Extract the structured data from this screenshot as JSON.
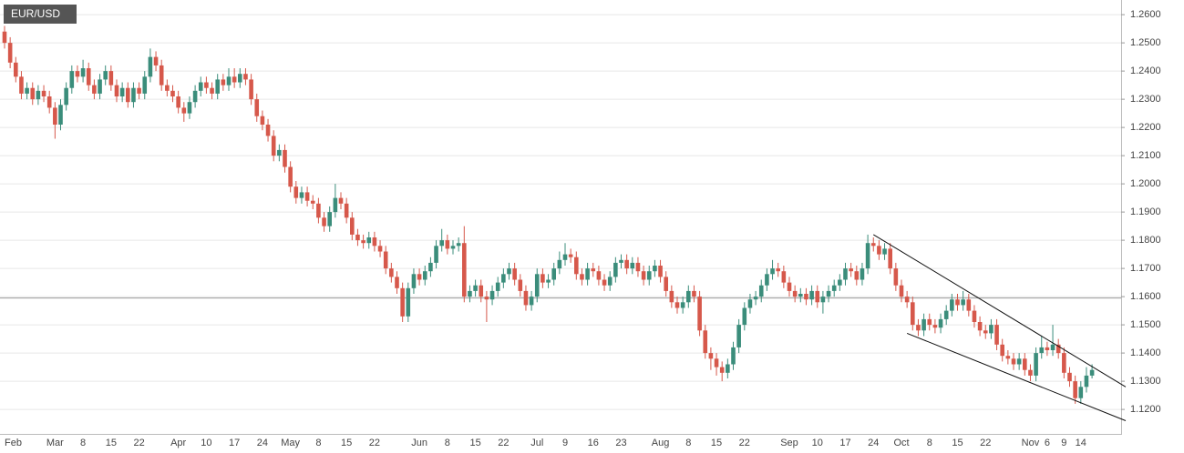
{
  "chart_data": {
    "type": "candlestick",
    "title": "EUR/USD",
    "up_color": "#3b8d7b",
    "down_color": "#d6584b",
    "grid": true,
    "ylim": [
      1.111,
      1.2652
    ],
    "yticks": [
      {
        "value": 1.12,
        "label": "1.1200"
      },
      {
        "value": 1.13,
        "label": "1.1300"
      },
      {
        "value": 1.14,
        "label": "1.1400"
      },
      {
        "value": 1.15,
        "label": "1.1500"
      },
      {
        "value": 1.16,
        "label": "1.1600"
      },
      {
        "value": 1.17,
        "label": "1.1700"
      },
      {
        "value": 1.18,
        "label": "1.1800"
      },
      {
        "value": 1.19,
        "label": "1.1900"
      },
      {
        "value": 1.2,
        "label": "1.2000"
      },
      {
        "value": 1.21,
        "label": "1.2100"
      },
      {
        "value": 1.22,
        "label": "1.2200"
      },
      {
        "value": 1.23,
        "label": "1.2300"
      },
      {
        "value": 1.24,
        "label": "1.2400"
      },
      {
        "value": 1.25,
        "label": "1.2500"
      },
      {
        "value": 1.26,
        "label": "1.2600"
      }
    ],
    "reference_line": 1.1595,
    "trendlines": [
      {
        "x": [
          155,
          200
        ],
        "y": [
          1.182,
          1.128
        ]
      },
      {
        "x": [
          161,
          200
        ],
        "y": [
          1.147,
          1.116
        ]
      }
    ],
    "categories": [
      "Feb",
      null,
      null,
      null,
      null,
      null,
      null,
      null,
      null,
      "Mar",
      null,
      null,
      null,
      null,
      "8",
      null,
      null,
      null,
      null,
      "15",
      null,
      null,
      null,
      null,
      "22",
      null,
      null,
      null,
      null,
      null,
      null,
      "Apr",
      null,
      null,
      null,
      null,
      "10",
      null,
      null,
      null,
      null,
      "17",
      null,
      null,
      null,
      null,
      "24",
      null,
      null,
      null,
      null,
      "May",
      null,
      null,
      null,
      null,
      "8",
      null,
      null,
      null,
      null,
      "15",
      null,
      null,
      null,
      null,
      "22",
      null,
      null,
      null,
      null,
      null,
      null,
      null,
      "Jun",
      null,
      null,
      null,
      null,
      "8",
      null,
      null,
      null,
      null,
      "15",
      null,
      null,
      null,
      null,
      "22",
      null,
      null,
      null,
      null,
      null,
      "Jul",
      null,
      null,
      null,
      null,
      "9",
      null,
      null,
      null,
      null,
      "16",
      null,
      null,
      null,
      null,
      "23",
      null,
      null,
      null,
      null,
      null,
      null,
      "Aug",
      null,
      null,
      null,
      null,
      "8",
      null,
      null,
      null,
      null,
      "15",
      null,
      null,
      null,
      null,
      "22",
      null,
      null,
      null,
      null,
      null,
      null,
      null,
      "Sep",
      null,
      null,
      null,
      null,
      "10",
      null,
      null,
      null,
      null,
      "17",
      null,
      null,
      null,
      null,
      "24",
      null,
      null,
      null,
      null,
      "Oct",
      null,
      null,
      null,
      null,
      "8",
      null,
      null,
      null,
      null,
      "15",
      null,
      null,
      null,
      null,
      "22",
      null,
      null,
      null,
      null,
      null,
      null,
      null,
      "Nov",
      null,
      null,
      "6",
      null,
      null,
      "9",
      null,
      null,
      "14",
      null,
      null
    ],
    "ohlc": [
      [
        1.254,
        1.256,
        1.248,
        1.25
      ],
      [
        1.25,
        1.252,
        1.241,
        1.243
      ],
      [
        1.243,
        1.245,
        1.236,
        1.238
      ],
      [
        1.238,
        1.24,
        1.23,
        1.232
      ],
      [
        1.232,
        1.236,
        1.23,
        1.234
      ],
      [
        1.234,
        1.236,
        1.228,
        1.23
      ],
      [
        1.23,
        1.235,
        1.228,
        1.233
      ],
      [
        1.233,
        1.235,
        1.229,
        1.231
      ],
      [
        1.231,
        1.233,
        1.225,
        1.227
      ],
      [
        1.227,
        1.229,
        1.216,
        1.221
      ],
      [
        1.221,
        1.23,
        1.219,
        1.228
      ],
      [
        1.228,
        1.236,
        1.226,
        1.234
      ],
      [
        1.234,
        1.242,
        1.232,
        1.24
      ],
      [
        1.24,
        1.242,
        1.236,
        1.238
      ],
      [
        1.238,
        1.244,
        1.236,
        1.241
      ],
      [
        1.241,
        1.243,
        1.233,
        1.235
      ],
      [
        1.235,
        1.237,
        1.23,
        1.232
      ],
      [
        1.232,
        1.239,
        1.23,
        1.237
      ],
      [
        1.237,
        1.242,
        1.235,
        1.24
      ],
      [
        1.24,
        1.242,
        1.233,
        1.235
      ],
      [
        1.235,
        1.237,
        1.229,
        1.231
      ],
      [
        1.231,
        1.236,
        1.229,
        1.234
      ],
      [
        1.234,
        1.236,
        1.227,
        1.229
      ],
      [
        1.229,
        1.236,
        1.227,
        1.234
      ],
      [
        1.234,
        1.236,
        1.23,
        1.232
      ],
      [
        1.232,
        1.24,
        1.23,
        1.238
      ],
      [
        1.238,
        1.248,
        1.236,
        1.245
      ],
      [
        1.245,
        1.247,
        1.24,
        1.242
      ],
      [
        1.242,
        1.244,
        1.233,
        1.235
      ],
      [
        1.235,
        1.237,
        1.231,
        1.233
      ],
      [
        1.233,
        1.235,
        1.229,
        1.231
      ],
      [
        1.231,
        1.233,
        1.225,
        1.227
      ],
      [
        1.227,
        1.229,
        1.222,
        1.225
      ],
      [
        1.225,
        1.231,
        1.223,
        1.229
      ],
      [
        1.229,
        1.235,
        1.227,
        1.233
      ],
      [
        1.233,
        1.238,
        1.231,
        1.236
      ],
      [
        1.236,
        1.238,
        1.232,
        1.234
      ],
      [
        1.234,
        1.236,
        1.23,
        1.232
      ],
      [
        1.232,
        1.239,
        1.23,
        1.237
      ],
      [
        1.237,
        1.239,
        1.233,
        1.235
      ],
      [
        1.235,
        1.241,
        1.233,
        1.238
      ],
      [
        1.238,
        1.241,
        1.234,
        1.236
      ],
      [
        1.236,
        1.241,
        1.234,
        1.239
      ],
      [
        1.239,
        1.241,
        1.235,
        1.237
      ],
      [
        1.237,
        1.239,
        1.228,
        1.23
      ],
      [
        1.23,
        1.232,
        1.222,
        1.224
      ],
      [
        1.224,
        1.226,
        1.219,
        1.221
      ],
      [
        1.221,
        1.223,
        1.215,
        1.217
      ],
      [
        1.217,
        1.219,
        1.208,
        1.21
      ],
      [
        1.21,
        1.214,
        1.208,
        1.212
      ],
      [
        1.212,
        1.214,
        1.204,
        1.206
      ],
      [
        1.206,
        1.208,
        1.197,
        1.199
      ],
      [
        1.199,
        1.201,
        1.193,
        1.195
      ],
      [
        1.195,
        1.199,
        1.193,
        1.197
      ],
      [
        1.197,
        1.199,
        1.192,
        1.194
      ],
      [
        1.194,
        1.196,
        1.191,
        1.193
      ],
      [
        1.193,
        1.195,
        1.186,
        1.188
      ],
      [
        1.188,
        1.19,
        1.183,
        1.185
      ],
      [
        1.185,
        1.192,
        1.183,
        1.19
      ],
      [
        1.19,
        1.2,
        1.188,
        1.195
      ],
      [
        1.195,
        1.197,
        1.191,
        1.193
      ],
      [
        1.193,
        1.195,
        1.186,
        1.188
      ],
      [
        1.188,
        1.19,
        1.18,
        1.182
      ],
      [
        1.182,
        1.184,
        1.178,
        1.18
      ],
      [
        1.18,
        1.182,
        1.177,
        1.179
      ],
      [
        1.179,
        1.183,
        1.177,
        1.181
      ],
      [
        1.181,
        1.183,
        1.176,
        1.178
      ],
      [
        1.178,
        1.18,
        1.174,
        1.176
      ],
      [
        1.176,
        1.178,
        1.168,
        1.17
      ],
      [
        1.17,
        1.172,
        1.165,
        1.167
      ],
      [
        1.167,
        1.169,
        1.161,
        1.163
      ],
      [
        1.163,
        1.165,
        1.151,
        1.153
      ],
      [
        1.153,
        1.165,
        1.151,
        1.163
      ],
      [
        1.163,
        1.17,
        1.161,
        1.168
      ],
      [
        1.168,
        1.17,
        1.164,
        1.166
      ],
      [
        1.166,
        1.171,
        1.164,
        1.169
      ],
      [
        1.169,
        1.174,
        1.167,
        1.172
      ],
      [
        1.172,
        1.18,
        1.17,
        1.178
      ],
      [
        1.178,
        1.184,
        1.176,
        1.18
      ],
      [
        1.18,
        1.182,
        1.175,
        1.177
      ],
      [
        1.177,
        1.18,
        1.175,
        1.178
      ],
      [
        1.178,
        1.181,
        1.176,
        1.179
      ],
      [
        1.179,
        1.185,
        1.158,
        1.16
      ],
      [
        1.16,
        1.164,
        1.158,
        1.162
      ],
      [
        1.162,
        1.166,
        1.16,
        1.164
      ],
      [
        1.164,
        1.166,
        1.158,
        1.16
      ],
      [
        1.16,
        1.162,
        1.151,
        1.159
      ],
      [
        1.159,
        1.164,
        1.157,
        1.162
      ],
      [
        1.162,
        1.167,
        1.16,
        1.165
      ],
      [
        1.165,
        1.17,
        1.163,
        1.168
      ],
      [
        1.168,
        1.172,
        1.166,
        1.17
      ],
      [
        1.17,
        1.172,
        1.164,
        1.166
      ],
      [
        1.166,
        1.168,
        1.16,
        1.162
      ],
      [
        1.162,
        1.164,
        1.155,
        1.157
      ],
      [
        1.157,
        1.162,
        1.155,
        1.16
      ],
      [
        1.16,
        1.17,
        1.158,
        1.168
      ],
      [
        1.168,
        1.17,
        1.163,
        1.165
      ],
      [
        1.165,
        1.168,
        1.163,
        1.166
      ],
      [
        1.166,
        1.172,
        1.164,
        1.17
      ],
      [
        1.17,
        1.176,
        1.168,
        1.173
      ],
      [
        1.173,
        1.179,
        1.171,
        1.175
      ],
      [
        1.175,
        1.177,
        1.172,
        1.174
      ],
      [
        1.174,
        1.176,
        1.166,
        1.168
      ],
      [
        1.168,
        1.17,
        1.164,
        1.166
      ],
      [
        1.166,
        1.172,
        1.164,
        1.17
      ],
      [
        1.17,
        1.172,
        1.167,
        1.169
      ],
      [
        1.169,
        1.171,
        1.164,
        1.166
      ],
      [
        1.166,
        1.168,
        1.162,
        1.164
      ],
      [
        1.164,
        1.169,
        1.162,
        1.167
      ],
      [
        1.167,
        1.174,
        1.165,
        1.172
      ],
      [
        1.172,
        1.175,
        1.17,
        1.173
      ],
      [
        1.173,
        1.175,
        1.168,
        1.17
      ],
      [
        1.17,
        1.174,
        1.168,
        1.172
      ],
      [
        1.172,
        1.174,
        1.167,
        1.169
      ],
      [
        1.169,
        1.171,
        1.164,
        1.166
      ],
      [
        1.166,
        1.171,
        1.164,
        1.169
      ],
      [
        1.169,
        1.173,
        1.167,
        1.171
      ],
      [
        1.171,
        1.173,
        1.165,
        1.167
      ],
      [
        1.167,
        1.169,
        1.16,
        1.162
      ],
      [
        1.162,
        1.164,
        1.156,
        1.158
      ],
      [
        1.158,
        1.16,
        1.154,
        1.156
      ],
      [
        1.156,
        1.16,
        1.154,
        1.158
      ],
      [
        1.158,
        1.164,
        1.156,
        1.162
      ],
      [
        1.162,
        1.164,
        1.158,
        1.16
      ],
      [
        1.16,
        1.162,
        1.146,
        1.148
      ],
      [
        1.148,
        1.15,
        1.138,
        1.14
      ],
      [
        1.14,
        1.142,
        1.134,
        1.138
      ],
      [
        1.138,
        1.14,
        1.132,
        1.135
      ],
      [
        1.135,
        1.137,
        1.13,
        1.133
      ],
      [
        1.133,
        1.138,
        1.131,
        1.136
      ],
      [
        1.136,
        1.144,
        1.134,
        1.142
      ],
      [
        1.142,
        1.152,
        1.14,
        1.15
      ],
      [
        1.15,
        1.158,
        1.148,
        1.156
      ],
      [
        1.156,
        1.161,
        1.154,
        1.159
      ],
      [
        1.159,
        1.162,
        1.157,
        1.16
      ],
      [
        1.16,
        1.166,
        1.158,
        1.164
      ],
      [
        1.164,
        1.17,
        1.162,
        1.168
      ],
      [
        1.168,
        1.173,
        1.166,
        1.17
      ],
      [
        1.17,
        1.172,
        1.167,
        1.169
      ],
      [
        1.169,
        1.171,
        1.163,
        1.165
      ],
      [
        1.165,
        1.167,
        1.16,
        1.162
      ],
      [
        1.162,
        1.164,
        1.158,
        1.16
      ],
      [
        1.16,
        1.163,
        1.158,
        1.161
      ],
      [
        1.161,
        1.163,
        1.157,
        1.159
      ],
      [
        1.159,
        1.164,
        1.157,
        1.162
      ],
      [
        1.162,
        1.164,
        1.156,
        1.158
      ],
      [
        1.158,
        1.162,
        1.154,
        1.16
      ],
      [
        1.16,
        1.164,
        1.158,
        1.162
      ],
      [
        1.162,
        1.166,
        1.16,
        1.164
      ],
      [
        1.164,
        1.168,
        1.162,
        1.166
      ],
      [
        1.166,
        1.172,
        1.164,
        1.17
      ],
      [
        1.17,
        1.172,
        1.167,
        1.169
      ],
      [
        1.169,
        1.171,
        1.164,
        1.166
      ],
      [
        1.166,
        1.172,
        1.164,
        1.17
      ],
      [
        1.17,
        1.182,
        1.168,
        1.179
      ],
      [
        1.179,
        1.181,
        1.176,
        1.178
      ],
      [
        1.178,
        1.18,
        1.173,
        1.175
      ],
      [
        1.175,
        1.179,
        1.173,
        1.177
      ],
      [
        1.177,
        1.179,
        1.168,
        1.17
      ],
      [
        1.17,
        1.172,
        1.162,
        1.164
      ],
      [
        1.164,
        1.166,
        1.158,
        1.16
      ],
      [
        1.16,
        1.162,
        1.156,
        1.158
      ],
      [
        1.158,
        1.16,
        1.148,
        1.15
      ],
      [
        1.15,
        1.152,
        1.146,
        1.148
      ],
      [
        1.148,
        1.154,
        1.146,
        1.152
      ],
      [
        1.152,
        1.154,
        1.148,
        1.15
      ],
      [
        1.15,
        1.152,
        1.147,
        1.149
      ],
      [
        1.149,
        1.154,
        1.147,
        1.152
      ],
      [
        1.152,
        1.157,
        1.15,
        1.155
      ],
      [
        1.155,
        1.161,
        1.153,
        1.159
      ],
      [
        1.159,
        1.161,
        1.155,
        1.157
      ],
      [
        1.157,
        1.162,
        1.155,
        1.159
      ],
      [
        1.159,
        1.161,
        1.153,
        1.155
      ],
      [
        1.155,
        1.157,
        1.149,
        1.151
      ],
      [
        1.151,
        1.153,
        1.146,
        1.148
      ],
      [
        1.148,
        1.15,
        1.145,
        1.147
      ],
      [
        1.147,
        1.152,
        1.145,
        1.15
      ],
      [
        1.15,
        1.152,
        1.141,
        1.143
      ],
      [
        1.143,
        1.145,
        1.137,
        1.139
      ],
      [
        1.139,
        1.141,
        1.136,
        1.138
      ],
      [
        1.138,
        1.14,
        1.134,
        1.136
      ],
      [
        1.136,
        1.14,
        1.134,
        1.138
      ],
      [
        1.138,
        1.14,
        1.132,
        1.134
      ],
      [
        1.134,
        1.136,
        1.13,
        1.132
      ],
      [
        1.132,
        1.142,
        1.13,
        1.14
      ],
      [
        1.14,
        1.146,
        1.138,
        1.142
      ],
      [
        1.142,
        1.144,
        1.139,
        1.141
      ],
      [
        1.141,
        1.15,
        1.139,
        1.143
      ],
      [
        1.143,
        1.145,
        1.138,
        1.14
      ],
      [
        1.14,
        1.142,
        1.131,
        1.133
      ],
      [
        1.133,
        1.135,
        1.128,
        1.13
      ],
      [
        1.13,
        1.132,
        1.122,
        1.124
      ],
      [
        1.124,
        1.13,
        1.122,
        1.128
      ],
      [
        1.128,
        1.135,
        1.126,
        1.132
      ],
      [
        1.132,
        1.136,
        1.131,
        1.134
      ]
    ]
  }
}
